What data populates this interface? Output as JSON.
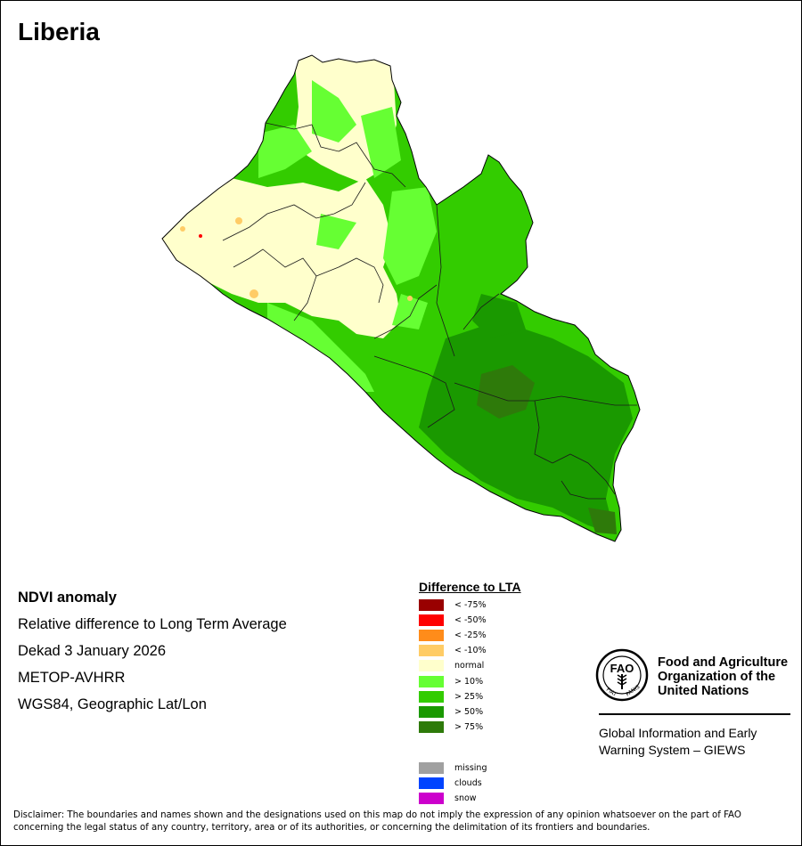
{
  "title": "Liberia",
  "info": {
    "line1": "NDVI anomaly",
    "line2": "Relative difference to Long Term Average",
    "line3": "Dekad 3 January 2026",
    "line4": "METOP-AVHRR",
    "line5": "WGS84, Geographic Lat/Lon"
  },
  "legend": {
    "heading": "Difference to LTA",
    "classes": [
      {
        "label": "< -75%",
        "color": "#990000"
      },
      {
        "label": "< -50%",
        "color": "#ff0000"
      },
      {
        "label": "< -25%",
        "color": "#ff8c1a"
      },
      {
        "label": "< -10%",
        "color": "#ffcc66"
      },
      {
        "label": "normal",
        "color": "#ffffcc"
      },
      {
        "label": "> 10%",
        "color": "#66ff33"
      },
      {
        "label": "> 25%",
        "color": "#33cc00"
      },
      {
        "label": "> 50%",
        "color": "#1a9900"
      },
      {
        "label": "> 75%",
        "color": "#2e7a0a"
      }
    ],
    "other": [
      {
        "label": "missing",
        "color": "#a0a0a0"
      },
      {
        "label": "clouds",
        "color": "#0044ff"
      },
      {
        "label": "snow",
        "color": "#cc00cc"
      }
    ]
  },
  "fao": {
    "name_line1": "Food and Agriculture",
    "name_line2": "Organization of the",
    "name_line3": "United Nations",
    "emblem_text": "FAO",
    "emblem_motto_left": "FIAT",
    "emblem_motto_right": "PANIS",
    "giews_line1": "Global Information and Early",
    "giews_line2": "Warning System – GIEWS"
  },
  "disclaimer": "Disclaimer: The boundaries and names shown and the designations used on this map do not imply the expression of any opinion whatsoever on the part of FAO concerning the legal status of any country, territory, area or of its authorities, or concerning the delimitation of its frontiers and boundaries."
}
